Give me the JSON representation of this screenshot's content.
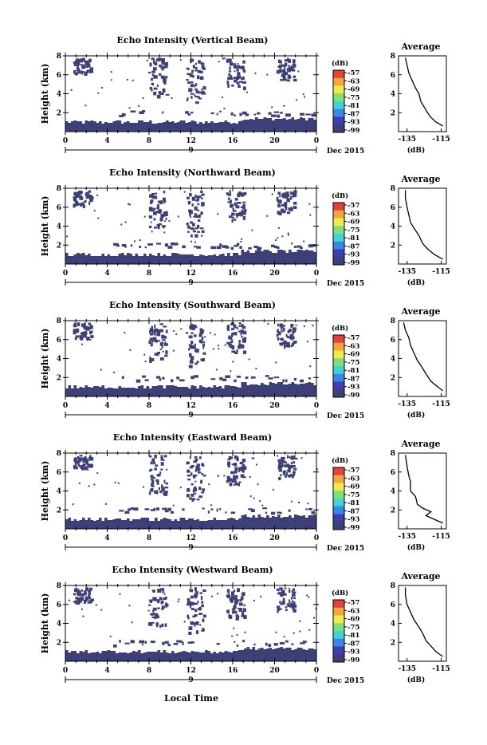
{
  "colorbar": {
    "unit": "(dB)",
    "labels": [
      "-57",
      "-63",
      "-69",
      "-75",
      "-81",
      "-87",
      "-93",
      "-99"
    ],
    "colors": [
      "#e8403a",
      "#f4a53c",
      "#f2e94a",
      "#7fe07a",
      "#3fd2d6",
      "#3a86e8",
      "#3b3fb0",
      "#3c3f78"
    ]
  },
  "x_axis": {
    "ticks": [
      "0",
      "4",
      "8",
      "12",
      "16",
      "20",
      "0"
    ],
    "day_label": "9",
    "month_label": "Dec 2015",
    "xlabel": "Local Time"
  },
  "average_axis": {
    "title": "Average",
    "x_ticks": [
      "-135",
      "-115"
    ],
    "xlabel": "(dB)",
    "y_ticks": [
      "8",
      "6",
      "4",
      "2"
    ]
  },
  "chart_data": [
    {
      "type": "heatmap",
      "title": "Echo Intensity (Vertical Beam)",
      "ylabel": "Height (km)",
      "y_ticks": [
        "8",
        "6",
        "4",
        "2"
      ],
      "xlim": [
        0,
        24
      ],
      "ylim": [
        0,
        8
      ],
      "avg_profile": [
        [
          -114,
          0.6
        ],
        [
          -118,
          1.0
        ],
        [
          -121,
          1.5
        ],
        [
          -123,
          2.0
        ],
        [
          -125,
          2.6
        ],
        [
          -127,
          3.2
        ],
        [
          -128,
          4.0
        ],
        [
          -130,
          4.6
        ],
        [
          -132,
          5.4
        ],
        [
          -134,
          6.2
        ],
        [
          -135,
          7.0
        ],
        [
          -136,
          7.8
        ]
      ]
    },
    {
      "type": "heatmap",
      "title": "Echo Intensity (Northward Beam)",
      "ylabel": "Height (km)",
      "y_ticks": [
        "8",
        "6",
        "4",
        "2"
      ],
      "xlim": [
        0,
        24
      ],
      "ylim": [
        0,
        8
      ],
      "avg_profile": [
        [
          -114,
          0.5
        ],
        [
          -119,
          1.0
        ],
        [
          -123,
          1.6
        ],
        [
          -126,
          2.2
        ],
        [
          -128,
          3.0
        ],
        [
          -131,
          3.8
        ],
        [
          -133,
          4.4
        ],
        [
          -134,
          5.2
        ],
        [
          -135,
          6.0
        ],
        [
          -136,
          7.0
        ],
        [
          -136,
          7.8
        ]
      ]
    },
    {
      "type": "heatmap",
      "title": "Echo Intensity (Southward Beam)",
      "ylabel": "Height (km)",
      "y_ticks": [
        "8",
        "6",
        "4",
        "2"
      ],
      "xlim": [
        0,
        24
      ],
      "ylim": [
        0,
        8
      ],
      "avg_profile": [
        [
          -114,
          0.6
        ],
        [
          -117,
          1.0
        ],
        [
          -121,
          1.6
        ],
        [
          -124,
          2.4
        ],
        [
          -126,
          3.0
        ],
        [
          -129,
          3.8
        ],
        [
          -131,
          4.6
        ],
        [
          -133,
          5.4
        ],
        [
          -134,
          6.2
        ],
        [
          -136,
          7.0
        ],
        [
          -137,
          7.8
        ]
      ]
    },
    {
      "type": "heatmap",
      "title": "Echo Intensity (Eastward Beam)",
      "ylabel": "Height (km)",
      "y_ticks": [
        "8",
        "6",
        "4",
        "2"
      ],
      "xlim": [
        0,
        24
      ],
      "ylim": [
        0,
        8
      ],
      "avg_profile": [
        [
          -114,
          0.6
        ],
        [
          -119,
          1.0
        ],
        [
          -124,
          1.4
        ],
        [
          -121,
          1.8
        ],
        [
          -126,
          2.2
        ],
        [
          -129,
          2.6
        ],
        [
          -130,
          3.4
        ],
        [
          -133,
          4.0
        ],
        [
          -133,
          5.0
        ],
        [
          -134,
          5.6
        ],
        [
          -135,
          6.6
        ],
        [
          -136,
          7.8
        ]
      ]
    },
    {
      "type": "heatmap",
      "title": "Echo Intensity (Westward Beam)",
      "ylabel": "Height (km)",
      "y_ticks": [
        "8",
        "6",
        "4",
        "2"
      ],
      "xlim": [
        0,
        24
      ],
      "ylim": [
        0,
        8
      ],
      "avg_profile": [
        [
          -114,
          0.5
        ],
        [
          -118,
          1.0
        ],
        [
          -121,
          1.6
        ],
        [
          -124,
          2.2
        ],
        [
          -126,
          3.0
        ],
        [
          -128,
          3.6
        ],
        [
          -131,
          4.4
        ],
        [
          -133,
          5.2
        ],
        [
          -135,
          6.0
        ],
        [
          -136,
          7.0
        ],
        [
          -136,
          7.8
        ]
      ]
    }
  ]
}
